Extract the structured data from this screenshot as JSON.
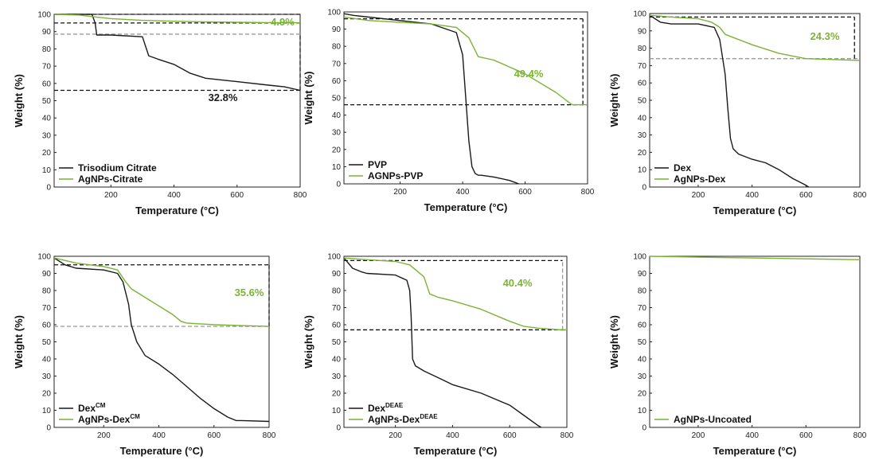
{
  "colors": {
    "black_series": "#1a1a1a",
    "green_series": "#7ab434",
    "dashed_black": "#111111",
    "dashed_gray": "#9a9a9a"
  },
  "chart_data": [
    {
      "type": "line",
      "xlabel": "Temperature (°C)",
      "ylabel": "Weight (%)",
      "xlim": [
        20,
        800
      ],
      "ylim": [
        0,
        100
      ],
      "xticks": [
        200,
        400,
        600,
        800
      ],
      "yticks": [
        0,
        10,
        20,
        30,
        40,
        50,
        60,
        70,
        80,
        90,
        100
      ],
      "legend_position": "bottom-left",
      "series": [
        {
          "name": "Trisodium Citrate",
          "color": "black",
          "x": [
            20,
            140,
            150,
            155,
            200,
            300,
            320,
            350,
            400,
            450,
            500,
            600,
            700,
            750,
            800
          ],
          "y": [
            100,
            100,
            95,
            88,
            88,
            87,
            76,
            74,
            71,
            66,
            63,
            61,
            59,
            58,
            56
          ]
        },
        {
          "name": "AgNPs-Citrate",
          "color": "green",
          "x": [
            20,
            100,
            150,
            200,
            300,
            400,
            500,
            600,
            700,
            800
          ],
          "y": [
            100,
            99.6,
            98.5,
            97.5,
            96.5,
            96,
            95.6,
            95.4,
            95.2,
            95.1
          ]
        }
      ],
      "annotations": [
        {
          "text": "4.9%",
          "color": "green"
        },
        {
          "text": "32.8%",
          "color": "black"
        }
      ],
      "ref_lines": [
        {
          "orientation": "h",
          "y": 100,
          "x_from": 20,
          "x_to": 800,
          "color": "black"
        },
        {
          "orientation": "h",
          "y": 95,
          "x_from": 20,
          "x_to": 800,
          "color": "black"
        },
        {
          "orientation": "h",
          "y": 88.5,
          "x_from": 20,
          "x_to": 800,
          "color": "gray"
        },
        {
          "orientation": "h",
          "y": 56,
          "x_from": 20,
          "x_to": 800,
          "color": "black"
        },
        {
          "orientation": "v",
          "x": 800,
          "y_from": 56,
          "y_to": 88.5,
          "color": "black"
        }
      ]
    },
    {
      "type": "line",
      "xlabel": "Temperature (°C)",
      "ylabel": "Weight (%)",
      "xlim": [
        20,
        800
      ],
      "ylim": [
        0,
        100
      ],
      "xticks": [
        200,
        400,
        600,
        800
      ],
      "yticks": [
        0,
        10,
        20,
        30,
        40,
        50,
        60,
        70,
        80,
        90,
        100
      ],
      "legend_position": "bottom-left",
      "series": [
        {
          "name": "PVP",
          "color": "black",
          "x": [
            20,
            50,
            100,
            200,
            300,
            380,
            400,
            410,
            420,
            430,
            440,
            450,
            460,
            500,
            550,
            580
          ],
          "y": [
            99,
            98,
            97,
            95,
            93,
            88,
            75,
            50,
            25,
            10,
            6,
            5,
            5,
            4,
            2,
            0
          ]
        },
        {
          "name": "AGNPs-PVP",
          "color": "green",
          "x": [
            20,
            100,
            200,
            300,
            380,
            420,
            450,
            500,
            600,
            700,
            750,
            780,
            800
          ],
          "y": [
            97,
            95,
            94,
            93,
            91,
            85,
            74,
            72,
            64,
            53,
            46,
            46,
            46
          ]
        }
      ],
      "annotations": [
        {
          "text": "49.4%",
          "color": "green"
        }
      ],
      "ref_lines": [
        {
          "orientation": "h",
          "y": 96,
          "x_from": 20,
          "x_to": 785,
          "color": "black"
        },
        {
          "orientation": "h",
          "y": 46,
          "x_from": 20,
          "x_to": 800,
          "color": "black"
        },
        {
          "orientation": "v",
          "x": 785,
          "y_from": 46,
          "y_to": 96,
          "color": "black"
        }
      ]
    },
    {
      "type": "line",
      "xlabel": "Temperature (°C)",
      "ylabel": "Weight (%)",
      "xlim": [
        20,
        800
      ],
      "ylim": [
        0,
        100
      ],
      "xticks": [
        200,
        400,
        600,
        800
      ],
      "yticks": [
        0,
        10,
        20,
        30,
        40,
        50,
        60,
        70,
        80,
        90,
        100
      ],
      "legend_position": "bottom-left",
      "series": [
        {
          "name": "Dex",
          "color": "black",
          "x": [
            20,
            60,
            100,
            200,
            260,
            280,
            300,
            310,
            320,
            330,
            350,
            400,
            450,
            500,
            550,
            600,
            610
          ],
          "y": [
            99,
            95,
            94,
            94,
            92,
            85,
            65,
            45,
            28,
            22,
            19,
            16,
            14,
            10,
            5,
            1,
            0
          ]
        },
        {
          "name": "AgNPs-Dex",
          "color": "green",
          "x": [
            20,
            100,
            200,
            250,
            280,
            300,
            350,
            400,
            500,
            600,
            700,
            800
          ],
          "y": [
            99,
            98,
            97,
            95,
            92,
            88,
            85,
            82,
            77,
            74,
            73.5,
            73
          ]
        }
      ],
      "annotations": [
        {
          "text": "24.3%",
          "color": "green"
        }
      ],
      "ref_lines": [
        {
          "orientation": "h",
          "y": 98,
          "x_from": 20,
          "x_to": 780,
          "color": "black"
        },
        {
          "orientation": "h",
          "y": 74,
          "x_from": 20,
          "x_to": 800,
          "color": "gray"
        },
        {
          "orientation": "v",
          "x": 780,
          "y_from": 74,
          "y_to": 98,
          "color": "black"
        }
      ]
    },
    {
      "type": "line",
      "xlabel": "Temperature (°C)",
      "ylabel": "Weight (%)",
      "xlim": [
        20,
        800
      ],
      "ylim": [
        0,
        100
      ],
      "xticks": [
        200,
        400,
        600,
        800
      ],
      "yticks": [
        0,
        10,
        20,
        30,
        40,
        50,
        60,
        70,
        80,
        90,
        100
      ],
      "legend_position": "bottom-left",
      "series": [
        {
          "name": "Dex",
          "name_superscript": "CM",
          "color": "black",
          "x": [
            20,
            60,
            100,
            200,
            250,
            270,
            290,
            300,
            320,
            350,
            400,
            450,
            500,
            550,
            600,
            650,
            680,
            700,
            800
          ],
          "y": [
            99,
            95,
            93,
            92,
            90,
            85,
            72,
            60,
            50,
            42,
            37,
            31,
            24,
            17,
            11,
            6,
            4,
            4,
            3.5
          ]
        },
        {
          "name": "AgNPs-Dex",
          "name_superscript": "CM",
          "color": "green",
          "x": [
            20,
            100,
            200,
            250,
            280,
            300,
            350,
            400,
            450,
            480,
            500,
            600,
            700,
            800
          ],
          "y": [
            99,
            96,
            94,
            92,
            85,
            81,
            76,
            71,
            66,
            62,
            61,
            60,
            59.5,
            59
          ]
        }
      ],
      "annotations": [
        {
          "text": "35.6%",
          "color": "green"
        }
      ],
      "ref_lines": [
        {
          "orientation": "h",
          "y": 95,
          "x_from": 20,
          "x_to": 800,
          "color": "black"
        },
        {
          "orientation": "h",
          "y": 59,
          "x_from": 20,
          "x_to": 800,
          "color": "gray"
        },
        {
          "orientation": "v",
          "x": 800,
          "y_from": 59,
          "y_to": 95,
          "color": "black"
        }
      ]
    },
    {
      "type": "line",
      "xlabel": "Temperature (°C)",
      "ylabel": "Weight (%)",
      "xlim": [
        20,
        800
      ],
      "ylim": [
        0,
        100
      ],
      "xticks": [
        200,
        400,
        600,
        800
      ],
      "yticks": [
        0,
        10,
        20,
        30,
        40,
        50,
        60,
        70,
        80,
        90,
        100
      ],
      "legend_position": "bottom-left",
      "series": [
        {
          "name": "Dex",
          "name_superscript": "DEAE",
          "color": "black",
          "x": [
            20,
            50,
            80,
            100,
            200,
            240,
            250,
            255,
            260,
            270,
            300,
            350,
            400,
            500,
            600,
            650,
            700,
            710
          ],
          "y": [
            99,
            93,
            91,
            90,
            89,
            86,
            80,
            65,
            40,
            36,
            33,
            29,
            25,
            20,
            13,
            7,
            1,
            0
          ]
        },
        {
          "name": "AgNPs-Dex",
          "name_superscript": "DEAE",
          "color": "green",
          "x": [
            20,
            100,
            200,
            250,
            300,
            320,
            350,
            400,
            500,
            600,
            650,
            700,
            780,
            800
          ],
          "y": [
            99,
            98,
            97,
            95,
            88,
            78,
            76,
            74,
            69,
            62,
            59,
            58,
            57,
            57
          ]
        }
      ],
      "annotations": [
        {
          "text": "40.4%",
          "color": "green"
        }
      ],
      "ref_lines": [
        {
          "orientation": "h",
          "y": 97.5,
          "x_from": 20,
          "x_to": 785,
          "color": "black"
        },
        {
          "orientation": "h",
          "y": 57,
          "x_from": 20,
          "x_to": 800,
          "color": "black"
        },
        {
          "orientation": "v",
          "x": 785,
          "y_from": 57,
          "y_to": 97.5,
          "color": "gray"
        }
      ]
    },
    {
      "type": "line",
      "xlabel": "Temperature (°C)",
      "ylabel": "Weight (%)",
      "xlim": [
        20,
        800
      ],
      "ylim": [
        0,
        100
      ],
      "xticks": [
        200,
        400,
        600,
        800
      ],
      "yticks": [
        0,
        10,
        20,
        30,
        40,
        50,
        60,
        70,
        80,
        90,
        100
      ],
      "legend_position": "bottom-left",
      "series": [
        {
          "name": "AgNPs-Uncoated",
          "color": "green",
          "x": [
            20,
            200,
            400,
            600,
            800
          ],
          "y": [
            100,
            99.5,
            99,
            98.5,
            98
          ]
        }
      ],
      "annotations": [],
      "ref_lines": []
    }
  ]
}
